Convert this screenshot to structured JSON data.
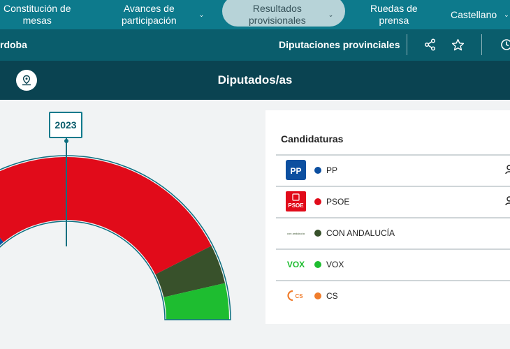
{
  "nav": {
    "items": [
      {
        "label": "Constitución de\nmesas"
      },
      {
        "label": "Avances de\nparticipación"
      },
      {
        "label": "Resultados\nprovisionales"
      },
      {
        "label": "Ruedas de\nprensa"
      },
      {
        "label": "Castellano"
      }
    ]
  },
  "subbar": {
    "place": "rdoba",
    "section": "Diputaciones provinciales"
  },
  "titlebar": {
    "title": "Diputados/as"
  },
  "chart": {
    "year": "2023"
  },
  "chart_data": {
    "type": "pie",
    "categories": [
      "PP",
      "PSOE",
      "CON ANDALUCÍA",
      "VOX"
    ],
    "values": [
      25.5,
      51,
      7,
      6.5
    ],
    "colors": [
      "#0c4fa0",
      "#e10b1a",
      "#38512b",
      "#1ebd30"
    ]
  },
  "card": {
    "heading": "Candidaturas",
    "rows": [
      {
        "name": "PP",
        "color": "#0c4fa0",
        "logo": "PP",
        "icon": "person-icon"
      },
      {
        "name": "PSOE",
        "color": "#e10b1a",
        "logo": "PSOE",
        "icon": "person-icon"
      },
      {
        "name": "CON ANDALUCÍA",
        "color": "#38512b",
        "logo": "con andalucía"
      },
      {
        "name": "VOX",
        "color": "#1ebd30",
        "logo": "VOX"
      },
      {
        "name": "CS",
        "color": "#f07d2c",
        "logo": "CS"
      }
    ]
  },
  "colors": {
    "nav": "#0d7a8c",
    "subbar": "#0a5d6c",
    "titlebar": "#0a4351"
  }
}
